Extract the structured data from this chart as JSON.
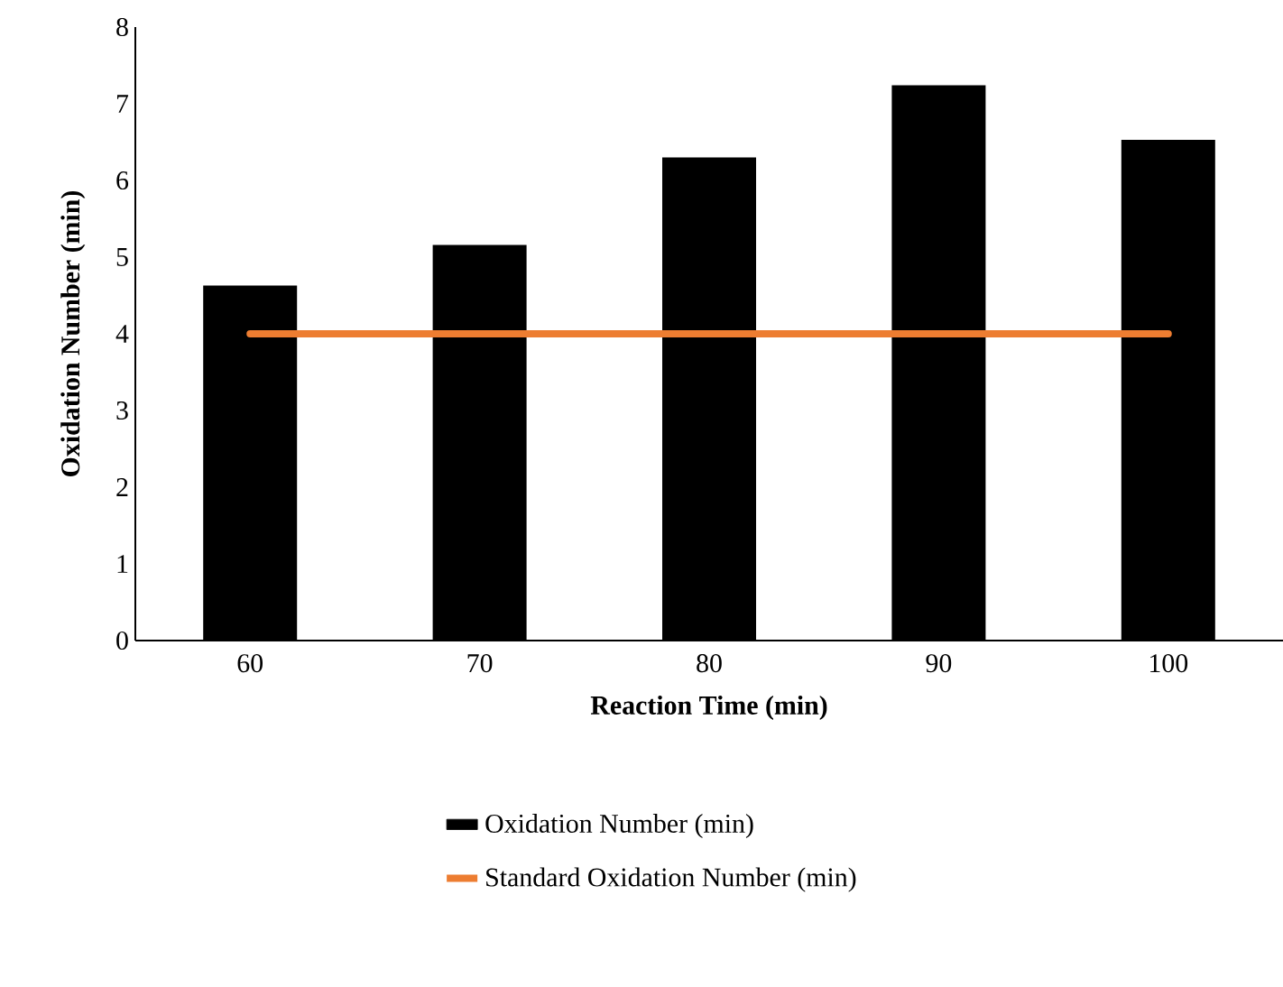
{
  "chart_data": {
    "type": "bar",
    "xlabel": "Reaction Time (min)",
    "ylabel": "Oxidation Number (min)",
    "categories": [
      "60",
      "70",
      "80",
      "90",
      "100"
    ],
    "series": [
      {
        "name": "Oxidation Number (min)",
        "color": "#000000",
        "values": [
          4.63,
          5.16,
          6.3,
          7.24,
          6.53
        ]
      },
      {
        "name": "Standard Oxidation Number (min)",
        "type": "line",
        "color": "#ed7d31",
        "values": [
          4,
          4,
          4,
          4,
          4
        ]
      }
    ],
    "ylim": [
      0,
      8
    ],
    "yticks": [
      0,
      1,
      2,
      3,
      4,
      5,
      6,
      7,
      8
    ],
    "legend": "bottom",
    "grid": false,
    "marker": "none",
    "line_style": "solid"
  }
}
